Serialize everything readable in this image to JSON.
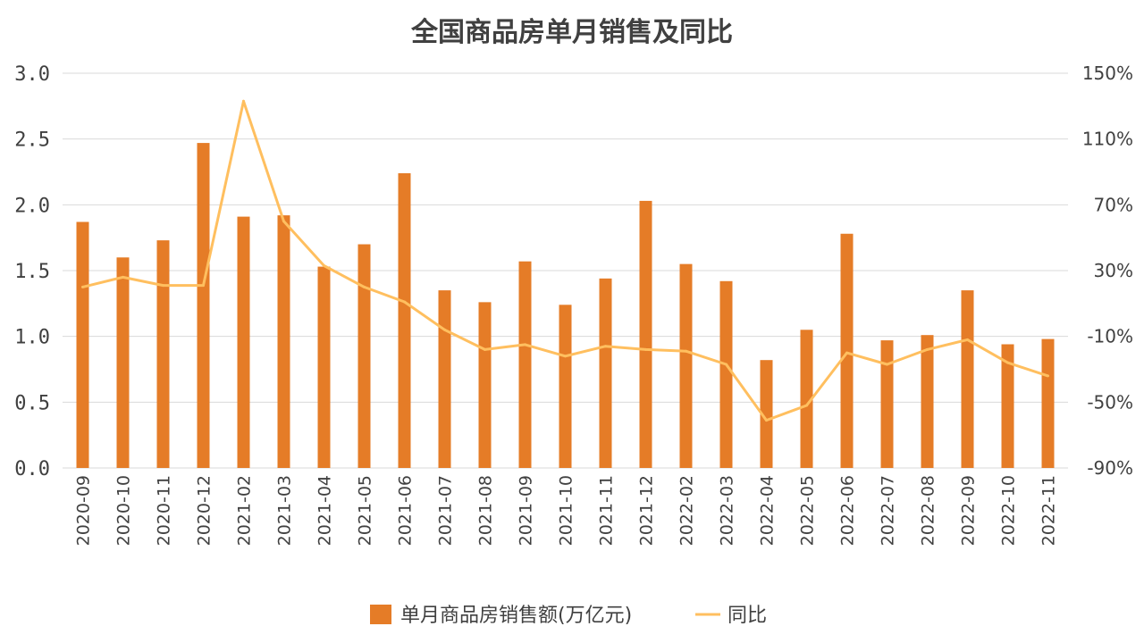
{
  "chart_data": {
    "type": "bar",
    "title": "全国商品房单月销售及同比",
    "categories": [
      "2020-09",
      "2020-10",
      "2020-11",
      "2020-12",
      "2021-02",
      "2021-03",
      "2021-04",
      "2021-05",
      "2021-06",
      "2021-07",
      "2021-08",
      "2021-09",
      "2021-10",
      "2021-11",
      "2021-12",
      "2022-02",
      "2022-03",
      "2022-04",
      "2022-05",
      "2022-06",
      "2022-07",
      "2022-08",
      "2022-09",
      "2022-10",
      "2022-11"
    ],
    "series": [
      {
        "name": "单月商品房销售额(万亿元)",
        "type": "bar",
        "axis": "left",
        "color": "#E57C27",
        "values": [
          1.87,
          1.6,
          1.73,
          2.47,
          1.91,
          1.92,
          1.53,
          1.7,
          2.24,
          1.35,
          1.26,
          1.57,
          1.24,
          1.44,
          2.03,
          1.55,
          1.42,
          0.82,
          1.05,
          1.78,
          0.97,
          1.01,
          1.35,
          0.94,
          0.98
        ]
      },
      {
        "name": "同比",
        "type": "line",
        "axis": "right",
        "color": "#FFBF5F",
        "values": [
          20,
          26,
          21,
          21,
          133,
          60,
          33,
          20,
          11,
          -6,
          -18,
          -15,
          -22,
          -16,
          -18,
          -19,
          -27,
          -61,
          -52,
          -20,
          -27,
          -18,
          -12,
          -26,
          -34
        ]
      }
    ],
    "y_left": {
      "min": 0,
      "max": 3.0,
      "ticks": [
        "0.0",
        "0.5",
        "1.0",
        "1.5",
        "2.0",
        "2.5",
        "3.0"
      ]
    },
    "y_right": {
      "min": -90,
      "max": 150,
      "ticks": [
        "-90%",
        "-50%",
        "-10%",
        "30%",
        "70%",
        "110%",
        "150%"
      ]
    },
    "grid": true,
    "legend": "bottom"
  }
}
